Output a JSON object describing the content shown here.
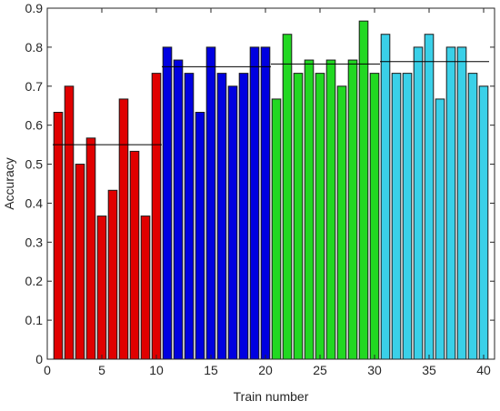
{
  "chart_data": {
    "type": "bar",
    "xlabel": "Train number",
    "ylabel": "Accuracy",
    "xlim": [
      0,
      41
    ],
    "ylim": [
      0,
      0.9
    ],
    "xticks": [
      0,
      5,
      10,
      15,
      20,
      25,
      30,
      35,
      40
    ],
    "yticks": [
      0,
      0.1,
      0.2,
      0.3,
      0.4,
      0.5,
      0.6,
      0.7,
      0.8,
      0.9
    ],
    "grid": false,
    "x": [
      1,
      2,
      3,
      4,
      5,
      6,
      7,
      8,
      9,
      10,
      11,
      12,
      13,
      14,
      15,
      16,
      17,
      18,
      19,
      20,
      21,
      22,
      23,
      24,
      25,
      26,
      27,
      28,
      29,
      30,
      31,
      32,
      33,
      34,
      35,
      36,
      37,
      38,
      39,
      40
    ],
    "values": [
      0.633,
      0.7,
      0.5,
      0.567,
      0.367,
      0.433,
      0.667,
      0.533,
      0.367,
      0.733,
      0.8,
      0.767,
      0.733,
      0.633,
      0.8,
      0.733,
      0.7,
      0.733,
      0.8,
      0.8,
      0.667,
      0.833,
      0.733,
      0.767,
      0.733,
      0.767,
      0.7,
      0.767,
      0.867,
      0.733,
      0.833,
      0.733,
      0.733,
      0.8,
      0.833,
      0.667,
      0.8,
      0.8,
      0.733,
      0.7
    ],
    "groups": [
      {
        "from": 1,
        "to": 10,
        "color": "#e00000",
        "mean": 0.55
      },
      {
        "from": 11,
        "to": 20,
        "color": "#0000e0",
        "mean": 0.75
      },
      {
        "from": 21,
        "to": 30,
        "color": "#22d822",
        "mean": 0.757
      },
      {
        "from": 31,
        "to": 40,
        "color": "#3ad0e8",
        "mean": 0.763
      }
    ],
    "mean_line_color": "#000000"
  }
}
